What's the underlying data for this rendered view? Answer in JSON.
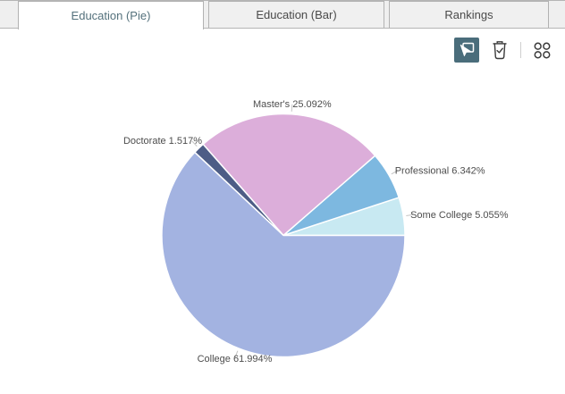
{
  "tabs": [
    {
      "label": "Education (Pie)",
      "active": true
    },
    {
      "label": "Education (Bar)",
      "active": false
    },
    {
      "label": "Rankings",
      "active": false
    }
  ],
  "toolbar": {
    "select_tool_icon": "cursor-select-icon",
    "clear_selection_icon": "trash-check-icon",
    "more_options_icon": "four-dots-icon",
    "active_tool_bg": "#4a6d7b",
    "icon_color": "#3a3a3a",
    "separator_color": "#cfcfcf"
  },
  "theme": {
    "tab_active_text": "#54717c",
    "tab_inactive_text": "#4a4a4a",
    "tab_border": "#b2b2b2",
    "tab_bar_bg": "#efefef"
  },
  "chart_data": {
    "type": "pie",
    "title": "",
    "categories": [
      "Some College",
      "Professional",
      "Master's",
      "Doctorate",
      "College"
    ],
    "values": [
      5.055,
      6.342,
      25.092,
      1.517,
      61.994
    ],
    "slices": [
      {
        "label": "Some College",
        "value": 5.055,
        "color": "#c8e9f2"
      },
      {
        "label": "Professional",
        "value": 6.342,
        "color": "#7db8e0"
      },
      {
        "label": "Master's",
        "value": 25.092,
        "color": "#dcaeda"
      },
      {
        "label": "Doctorate",
        "value": 1.517,
        "color": "#4d5d86"
      },
      {
        "label": "College",
        "value": 61.994,
        "color": "#a3b3e1"
      }
    ],
    "unit": "%",
    "start_angle_deg": 0,
    "direction": "ccw",
    "legend": "none",
    "labels_outside": true,
    "label_color": "#4d4d4d",
    "leader_color": "#c4c4c4",
    "stroke_color": "#ffffff"
  }
}
